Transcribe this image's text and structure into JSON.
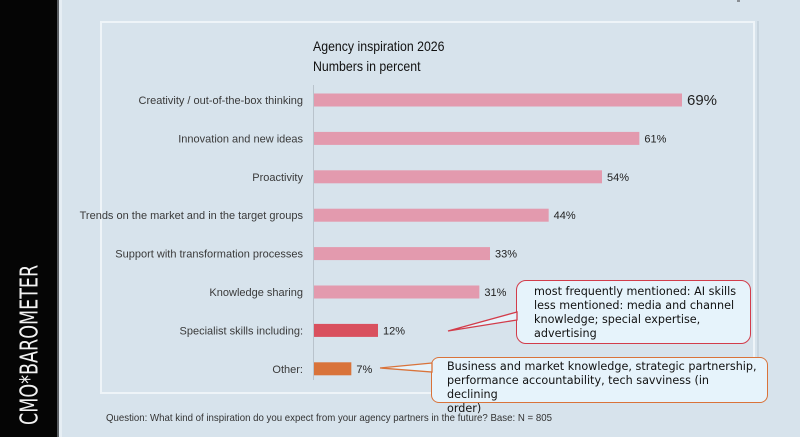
{
  "brand": {
    "text": "CMO*BAROMETER"
  },
  "chart_data": {
    "type": "bar",
    "orientation": "horizontal",
    "title": "Agency inspiration 2026",
    "subtitle": "Numbers in percent",
    "xlabel": "",
    "ylabel": "",
    "xlim": [
      0,
      100
    ],
    "unit": "%",
    "categories": [
      "Creativity / out-of-the-box thinking",
      "Innovation and new ideas",
      "Proactivity",
      "Trends on the market and in the target groups",
      "Support with transformation processes",
      "Knowledge sharing",
      "Specialist skills including:",
      "Other:"
    ],
    "values": [
      69,
      61,
      54,
      44,
      33,
      31,
      12,
      7
    ],
    "value_labels": [
      "69%",
      "61%",
      "54%",
      "44%",
      "33%",
      "31%",
      "12%",
      "7%"
    ],
    "bar_colors": [
      "#e39aae",
      "#e39aae",
      "#e39aae",
      "#e39aae",
      "#e39aae",
      "#e39aae",
      "#d9505e",
      "#d9733a"
    ],
    "annotations": [
      {
        "target": "Specialist skills including:",
        "color": "#d23c4a",
        "lines": [
          "most frequently mentioned: AI skills",
          "less mentioned: media and channel",
          "knowledge; special expertise,",
          "advertising"
        ]
      },
      {
        "target": "Other:",
        "color": "#d9733a",
        "lines": [
          "Business and market knowledge, strategic partnership,",
          "performance accountability, tech savviness (in declining",
          "order)"
        ]
      }
    ],
    "grid": false,
    "legend": "none"
  },
  "footnote": "Question: What kind of inspiration do you expect from your agency partners in the future? Base: N = 805"
}
